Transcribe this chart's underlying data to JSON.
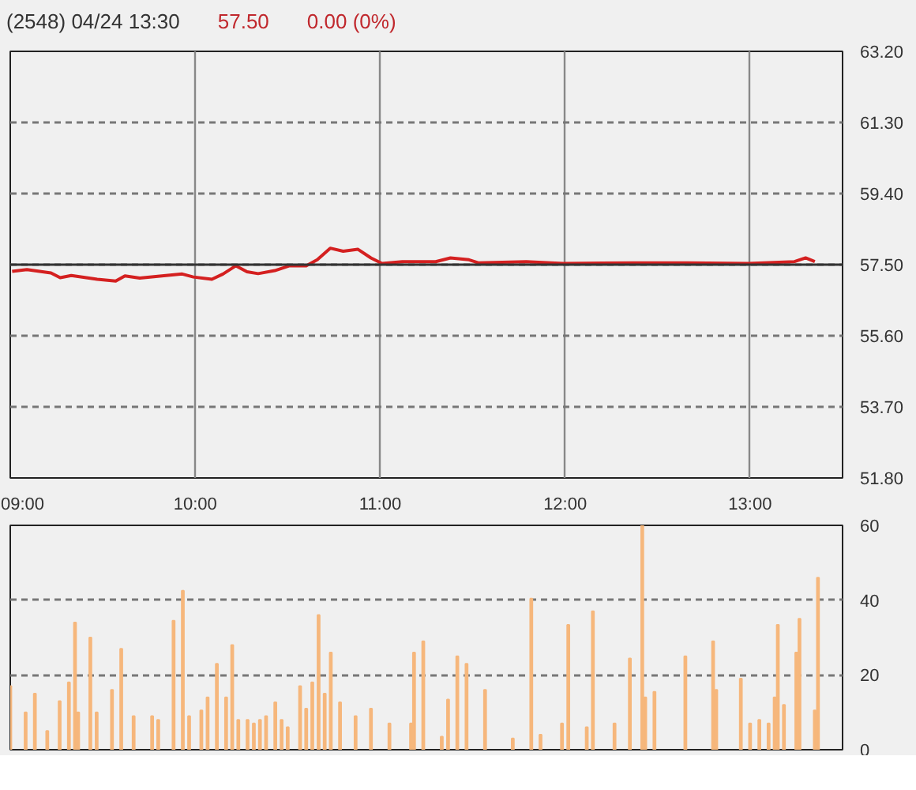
{
  "chart_data": [
    {
      "type": "line",
      "title": "(2548)  04/24 13:30",
      "annotations": [
        "57.50",
        "0.00 (0%)"
      ],
      "x": [
        9.01,
        9.09,
        9.22,
        9.27,
        9.33,
        9.47,
        9.57,
        9.62,
        9.7,
        9.82,
        9.93,
        9.99,
        10.09,
        10.15,
        10.22,
        10.28,
        10.34,
        10.43,
        10.51,
        10.6,
        10.66,
        10.73,
        10.8,
        10.88,
        10.95,
        11.01,
        11.12,
        11.27,
        11.3,
        11.38,
        11.48,
        11.53,
        11.79,
        11.99,
        12.37,
        12.66,
        12.99,
        13.24,
        13.3,
        13.35
      ],
      "series": [
        {
          "color": "#d42020",
          "values": [
            57.32,
            57.37,
            57.28,
            57.15,
            57.21,
            57.11,
            57.06,
            57.2,
            57.14,
            57.2,
            57.25,
            57.17,
            57.11,
            57.25,
            57.47,
            57.31,
            57.26,
            57.34,
            57.47,
            57.47,
            57.63,
            57.94,
            57.86,
            57.91,
            57.68,
            57.53,
            57.58,
            57.58,
            57.58,
            57.68,
            57.63,
            57.55,
            57.58,
            57.53,
            57.55,
            57.55,
            57.53,
            57.58,
            57.68,
            57.58
          ]
        }
      ],
      "xlim": [
        9,
        13.5
      ],
      "xticks": [
        {
          "value": 9,
          "label": "09:00"
        },
        {
          "value": 10,
          "label": "10:00"
        },
        {
          "value": 11,
          "label": "11:00"
        },
        {
          "value": 12,
          "label": "12:00"
        },
        {
          "value": 13,
          "label": "13:00"
        }
      ],
      "ylim": [
        51.8,
        63.2
      ],
      "yticks": [
        {
          "value": 51.8,
          "label": "51.80"
        },
        {
          "value": 53.7,
          "label": "53.70"
        },
        {
          "value": 55.6,
          "label": "55.60"
        },
        {
          "value": 57.5,
          "label": "57.50"
        },
        {
          "value": 59.4,
          "label": "59.40"
        },
        {
          "value": 61.3,
          "label": "61.30"
        },
        {
          "value": 63.2,
          "label": "63.20"
        }
      ],
      "ref_lines": [
        {
          "axis": "y",
          "value": 57.5,
          "color": "#333333",
          "line_style": "solid"
        }
      ],
      "grid": true,
      "marker": "none",
      "line_style": "solid"
    },
    {
      "type": "bar",
      "x": [
        9.0,
        9.083,
        9.133,
        9.2,
        9.267,
        9.317,
        9.35,
        9.367,
        9.433,
        9.467,
        9.55,
        9.6,
        9.667,
        9.767,
        9.8,
        9.883,
        9.933,
        9.967,
        10.033,
        10.067,
        10.117,
        10.167,
        10.2,
        10.233,
        10.283,
        10.317,
        10.35,
        10.383,
        10.433,
        10.467,
        10.5,
        10.567,
        10.6,
        10.633,
        10.667,
        10.7,
        10.733,
        10.783,
        10.867,
        10.95,
        11.05,
        11.167,
        11.183,
        11.233,
        11.333,
        11.367,
        11.417,
        11.467,
        11.567,
        11.717,
        11.817,
        11.867,
        11.983,
        12.017,
        12.117,
        12.15,
        12.267,
        12.35,
        12.417,
        12.433,
        12.483,
        12.65,
        12.8,
        12.817,
        12.95,
        13.0,
        13.05,
        13.1,
        13.133,
        13.15,
        13.183,
        13.25,
        13.267,
        13.35,
        13.367
      ],
      "series": [
        {
          "color": "#f6b77c",
          "values": [
            17,
            10,
            15,
            5,
            13,
            18,
            34,
            10,
            30,
            10,
            16,
            27,
            9,
            9,
            8,
            34.5,
            42.5,
            9,
            10.5,
            14,
            23,
            14,
            28,
            8,
            8,
            7,
            8,
            9,
            12.7,
            8,
            6,
            17,
            11,
            18,
            36,
            15,
            26,
            12.7,
            9,
            11,
            7,
            7,
            26,
            29,
            3.5,
            13.4,
            25,
            23,
            16,
            3,
            40.4,
            4,
            7,
            33.4,
            6,
            37,
            7,
            24.4,
            60,
            14,
            15.5,
            25,
            29,
            16,
            19,
            7,
            8,
            7,
            14,
            33.4,
            12,
            26,
            35,
            10.5,
            46
          ]
        }
      ],
      "xlim": [
        9,
        13.5
      ],
      "ylim": [
        0,
        60
      ],
      "yticks": [
        0,
        20,
        40,
        60
      ],
      "tick_labels": "y",
      "grid": "y"
    }
  ]
}
